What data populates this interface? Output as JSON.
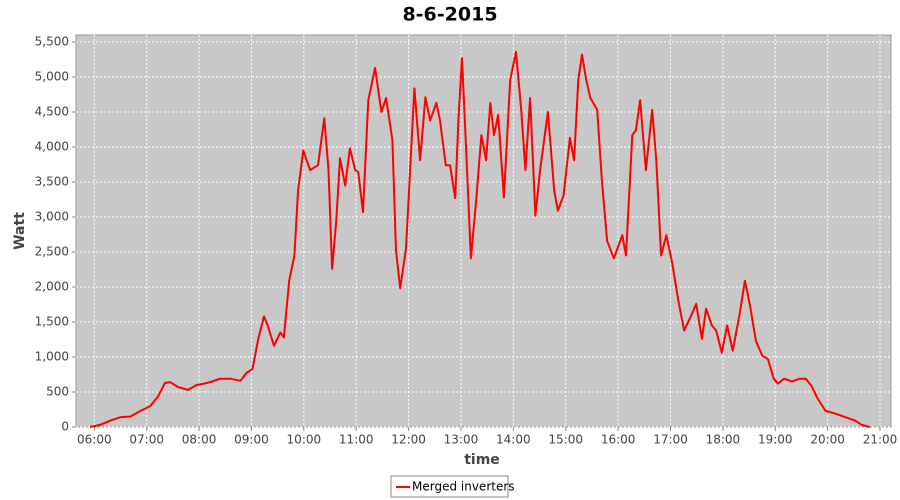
{
  "chart_data": {
    "type": "line",
    "title": "8-6-2015",
    "x_label": "time",
    "y_label": "Watt",
    "x": [
      5.92,
      6.11,
      6.3,
      6.5,
      6.69,
      6.88,
      7.07,
      7.22,
      7.35,
      7.45,
      7.6,
      7.79,
      7.95,
      8.1,
      8.25,
      8.4,
      8.6,
      8.79,
      8.9,
      9.02,
      9.13,
      9.24,
      9.31,
      9.43,
      9.55,
      9.62,
      9.72,
      9.82,
      9.89,
      9.99,
      10.12,
      10.27,
      10.39,
      10.47,
      10.54,
      10.62,
      10.69,
      10.79,
      10.88,
      10.98,
      11.04,
      11.13,
      11.23,
      11.36,
      11.48,
      11.57,
      11.69,
      11.76,
      11.84,
      11.95,
      12.11,
      12.22,
      12.32,
      12.41,
      12.53,
      12.6,
      12.71,
      12.79,
      12.89,
      12.95,
      13.02,
      13.1,
      13.19,
      13.29,
      13.39,
      13.48,
      13.56,
      13.63,
      13.71,
      13.82,
      13.94,
      14.05,
      14.15,
      14.23,
      14.32,
      14.42,
      14.51,
      14.66,
      14.78,
      14.85,
      14.96,
      15.08,
      15.16,
      15.24,
      15.31,
      15.39,
      15.47,
      15.6,
      15.69,
      15.79,
      15.92,
      16.08,
      16.15,
      16.27,
      16.34,
      16.42,
      16.53,
      16.65,
      16.73,
      16.82,
      16.92,
      17.03,
      17.15,
      17.26,
      17.37,
      17.49,
      17.6,
      17.68,
      17.79,
      17.87,
      17.98,
      18.08,
      18.19,
      18.33,
      18.42,
      18.52,
      18.63,
      18.75,
      18.86,
      18.97,
      19.05,
      19.17,
      19.32,
      19.47,
      19.58,
      19.69,
      19.8,
      19.96,
      20.15,
      20.34,
      20.53,
      20.65,
      20.81
    ],
    "series": [
      {
        "name": "Merged inverters",
        "color": "#ff0000",
        "values": [
          0,
          30,
          90,
          140,
          150,
          230,
          300,
          440,
          630,
          640,
          570,
          530,
          600,
          620,
          650,
          690,
          690,
          660,
          770,
          830,
          1260,
          1580,
          1450,
          1160,
          1350,
          1280,
          2090,
          2450,
          3380,
          3950,
          3670,
          3740,
          4410,
          3670,
          2260,
          2950,
          3840,
          3450,
          3980,
          3670,
          3640,
          3070,
          4670,
          5130,
          4500,
          4700,
          4100,
          2520,
          1980,
          2550,
          4840,
          3810,
          4710,
          4380,
          4630,
          4380,
          3740,
          3740,
          3270,
          4380,
          5270,
          3950,
          2410,
          3240,
          4170,
          3810,
          4630,
          4170,
          4460,
          3280,
          4960,
          5360,
          4530,
          3670,
          4700,
          3020,
          3670,
          4500,
          3380,
          3090,
          3310,
          4130,
          3810,
          4960,
          5320,
          4960,
          4700,
          4530,
          3520,
          2660,
          2410,
          2740,
          2450,
          4170,
          4240,
          4670,
          3670,
          4530,
          3810,
          2450,
          2740,
          2350,
          1810,
          1380,
          1550,
          1760,
          1260,
          1690,
          1450,
          1380,
          1060,
          1450,
          1090,
          1660,
          2090,
          1730,
          1230,
          1020,
          970,
          690,
          620,
          690,
          650,
          690,
          690,
          590,
          420,
          230,
          190,
          140,
          90,
          30,
          0
        ]
      }
    ],
    "xlim": [
      5.65,
      21.21
    ],
    "xticks": [
      {
        "value": 6,
        "label": "06:00"
      },
      {
        "value": 7,
        "label": "07:00"
      },
      {
        "value": 8,
        "label": "08:00"
      },
      {
        "value": 9,
        "label": "09:00"
      },
      {
        "value": 10,
        "label": "10:00"
      },
      {
        "value": 11,
        "label": "11:00"
      },
      {
        "value": 12,
        "label": "12:00"
      },
      {
        "value": 13,
        "label": "13:00"
      },
      {
        "value": 14,
        "label": "14:00"
      },
      {
        "value": 15,
        "label": "15:00"
      },
      {
        "value": 16,
        "label": "16:00"
      },
      {
        "value": 17,
        "label": "17:00"
      },
      {
        "value": 18,
        "label": "18:00"
      },
      {
        "value": 19,
        "label": "19:00"
      },
      {
        "value": 20,
        "label": "20:00"
      },
      {
        "value": 21,
        "label": "21:00"
      }
    ],
    "ylim": [
      0,
      5600
    ],
    "yticks": [
      0,
      500,
      {
        "value": 1000,
        "label": "1,000"
      },
      {
        "value": 1500,
        "label": "1,500"
      },
      {
        "value": 2000,
        "label": "2,000"
      },
      {
        "value": 2500,
        "label": "2,500"
      },
      {
        "value": 3000,
        "label": "3,000"
      },
      {
        "value": 3500,
        "label": "3,500"
      },
      {
        "value": 4000,
        "label": "4,000"
      },
      {
        "value": 4500,
        "label": "4,500"
      },
      {
        "value": 5000,
        "label": "5,000"
      },
      {
        "value": 5500,
        "label": "5,500"
      }
    ],
    "grid": true,
    "legend": "bottom"
  }
}
